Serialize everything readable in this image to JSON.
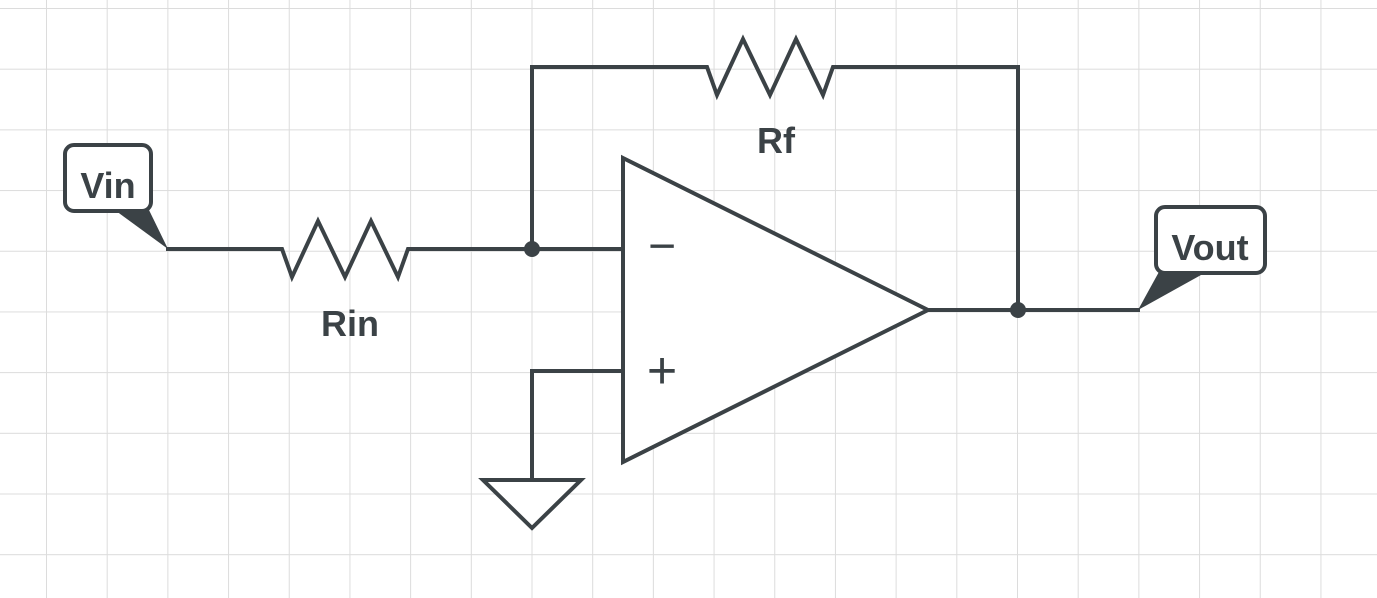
{
  "diagram": {
    "ink_color": "#3b4246",
    "grid_color": "#dcdcdc",
    "background_color": "#ffffff",
    "labels": {
      "input": "Vin",
      "output": "Vout",
      "input_resistor": "Rin",
      "feedback_resistor": "Rf",
      "inverting_input_symbol": "−",
      "non_inverting_input_symbol": "+"
    }
  }
}
